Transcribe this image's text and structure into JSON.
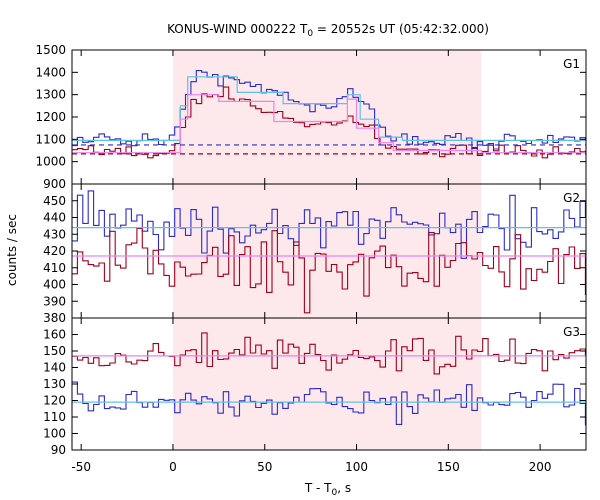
{
  "title_main": "KONUS-WIND 000222 T",
  "title_sub": "0",
  "title_tail": " = 20552s UT (05:42:32.000)",
  "xlabel_main": "T - T",
  "xlabel_sub": "0",
  "xlabel_tail": ", s",
  "ylabel": "counts / sec",
  "colors": {
    "red": "#a0001c",
    "blue": "#2b2bcc",
    "pink": "#ee82ee",
    "cyan": "#60c0e8",
    "shade": "#fde8ec",
    "frame": "#000000"
  },
  "chart_data": {
    "type": "line",
    "xlim": [
      -55,
      225
    ],
    "x_ticks": [
      -50,
      0,
      50,
      100,
      150,
      200
    ],
    "x_tick_labels": [
      "-50",
      "0",
      "50",
      "100",
      "150",
      "200"
    ],
    "shaded_interval": [
      0,
      168
    ],
    "bin_width": 2.944,
    "panels": [
      {
        "label": "G1",
        "ylim": [
          900,
          1500
        ],
        "y_ticks": [
          900,
          1000,
          1100,
          1200,
          1300,
          1400,
          1500
        ],
        "y_tick_labels": [
          "900",
          "1000",
          "1100",
          "1200",
          "1300",
          "1400",
          "1500"
        ],
        "red_background": 1035,
        "blue_background": 1075,
        "red_envelope": [
          [
            -55,
            1040
          ],
          [
            0,
            1045
          ],
          [
            4,
            1130
          ],
          [
            8,
            1200
          ],
          [
            12,
            1280
          ],
          [
            20,
            1300
          ],
          [
            30,
            1300
          ],
          [
            40,
            1260
          ],
          [
            50,
            1230
          ],
          [
            60,
            1200
          ],
          [
            70,
            1180
          ],
          [
            80,
            1170
          ],
          [
            90,
            1180
          ],
          [
            100,
            1190
          ],
          [
            108,
            1150
          ],
          [
            114,
            1080
          ],
          [
            120,
            1060
          ],
          [
            140,
            1050
          ],
          [
            168,
            1045
          ],
          [
            225,
            1040
          ]
        ],
        "blue_envelope": [
          [
            -55,
            1095
          ],
          [
            0,
            1105
          ],
          [
            4,
            1200
          ],
          [
            8,
            1300
          ],
          [
            12,
            1370
          ],
          [
            20,
            1390
          ],
          [
            30,
            1380
          ],
          [
            40,
            1340
          ],
          [
            50,
            1320
          ],
          [
            60,
            1310
          ],
          [
            70,
            1260
          ],
          [
            80,
            1250
          ],
          [
            90,
            1270
          ],
          [
            96,
            1310
          ],
          [
            102,
            1280
          ],
          [
            108,
            1220
          ],
          [
            114,
            1140
          ],
          [
            120,
            1110
          ],
          [
            140,
            1095
          ],
          [
            168,
            1095
          ],
          [
            225,
            1095
          ]
        ],
        "red_sigma": 14,
        "blue_sigma": 16,
        "pink_fit": [
          [
            -55,
            1040
          ],
          [
            4,
            1040
          ],
          [
            4,
            1190
          ],
          [
            8,
            1190
          ],
          [
            8,
            1300
          ],
          [
            25,
            1300
          ],
          [
            25,
            1270
          ],
          [
            55,
            1270
          ],
          [
            55,
            1180
          ],
          [
            95,
            1180
          ],
          [
            95,
            1280
          ],
          [
            100,
            1280
          ],
          [
            100,
            1150
          ],
          [
            112,
            1150
          ],
          [
            112,
            1085
          ],
          [
            120,
            1085
          ],
          [
            120,
            1050
          ],
          [
            168,
            1050
          ],
          [
            168,
            1040
          ],
          [
            225,
            1040
          ]
        ],
        "cyan_fit": [
          [
            -55,
            1095
          ],
          [
            4,
            1095
          ],
          [
            4,
            1250
          ],
          [
            8,
            1250
          ],
          [
            8,
            1380
          ],
          [
            35,
            1380
          ],
          [
            35,
            1310
          ],
          [
            60,
            1310
          ],
          [
            60,
            1260
          ],
          [
            95,
            1260
          ],
          [
            95,
            1300
          ],
          [
            102,
            1300
          ],
          [
            102,
            1190
          ],
          [
            112,
            1190
          ],
          [
            112,
            1110
          ],
          [
            125,
            1110
          ],
          [
            125,
            1095
          ],
          [
            225,
            1095
          ]
        ]
      },
      {
        "label": "G2",
        "ylim": [
          380,
          460
        ],
        "y_ticks": [
          380,
          390,
          400,
          410,
          420,
          430,
          440,
          450
        ],
        "y_tick_labels": [
          "380",
          "390",
          "400",
          "410",
          "420",
          "430",
          "440",
          "450"
        ],
        "red_envelope": [
          [
            -55,
            412
          ],
          [
            225,
            412
          ]
        ],
        "blue_envelope": [
          [
            -55,
            435
          ],
          [
            225,
            435
          ]
        ],
        "red_sigma": 9,
        "blue_sigma": 9,
        "pink_fit": [
          [
            -55,
            417
          ],
          [
            225,
            417
          ]
        ],
        "cyan_fit": [
          [
            -55,
            434
          ],
          [
            225,
            434
          ]
        ]
      },
      {
        "label": "G3",
        "ylim": [
          90,
          170
        ],
        "y_ticks": [
          90,
          100,
          110,
          120,
          130,
          140,
          150,
          160
        ],
        "y_tick_labels": [
          "90",
          "100",
          "110",
          "120",
          "130",
          "140",
          "150",
          "160"
        ],
        "red_envelope": [
          [
            -55,
            147
          ],
          [
            225,
            147
          ]
        ],
        "blue_envelope": [
          [
            -55,
            119
          ],
          [
            225,
            119
          ]
        ],
        "red_sigma": 5,
        "blue_sigma": 5,
        "pink_fit": [
          [
            -55,
            147
          ],
          [
            225,
            147
          ]
        ],
        "cyan_fit": [
          [
            -55,
            119
          ],
          [
            225,
            119
          ]
        ]
      }
    ]
  }
}
